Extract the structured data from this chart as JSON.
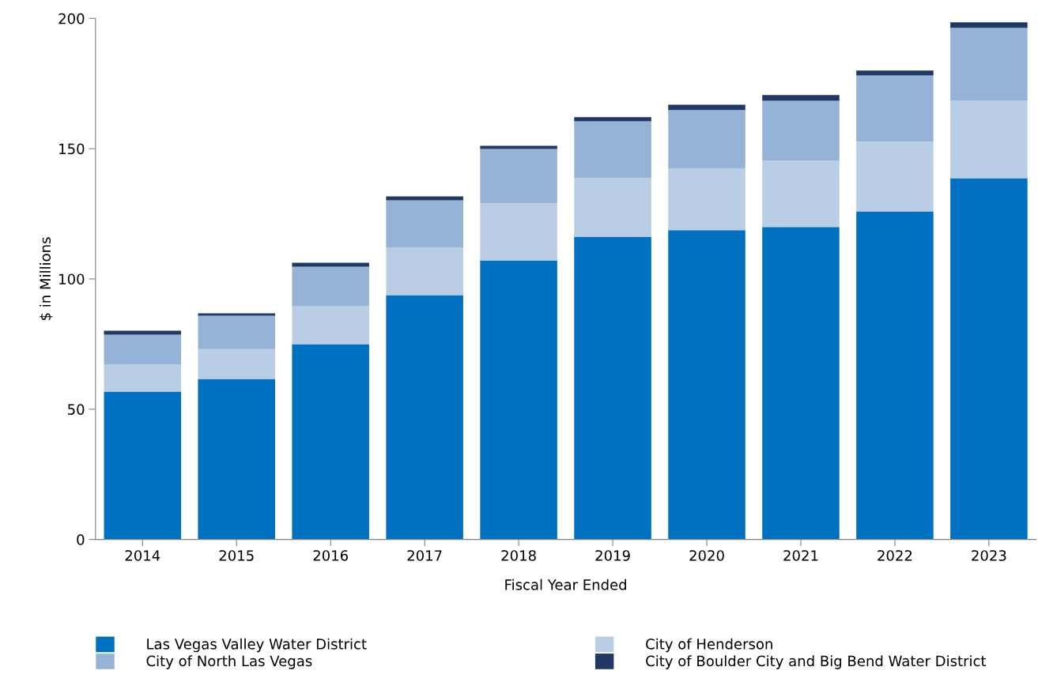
{
  "chart_data": {
    "type": "bar",
    "stacked": true,
    "xlabel": "Fiscal Year Ended",
    "ylabel": "$ in Millions",
    "categories": [
      "2014",
      "2015",
      "2016",
      "2017",
      "2018",
      "2019",
      "2020",
      "2021",
      "2022",
      "2023"
    ],
    "series": [
      {
        "name": "Las Vegas Valley Water District",
        "color": "#0070c0",
        "values": [
          56.8,
          61.6,
          75.0,
          93.8,
          107.1,
          116.2,
          118.7,
          119.9,
          125.9,
          138.7
        ]
      },
      {
        "name": "City of Henderson",
        "color": "#b9cde5",
        "values": [
          10.3,
          11.5,
          14.5,
          18.2,
          21.9,
          22.5,
          23.6,
          25.5,
          26.8,
          29.7
        ]
      },
      {
        "name": "City of North Las Vegas",
        "color": "#95b3d7",
        "values": [
          11.5,
          12.8,
          15.2,
          18.2,
          20.9,
          21.8,
          22.5,
          23.0,
          25.4,
          28.0
        ]
      },
      {
        "name": "City of Boulder City and Big Bend Water District",
        "color": "#1f3864",
        "values": [
          1.5,
          0.9,
          1.5,
          1.5,
          1.2,
          1.6,
          2.1,
          2.2,
          1.9,
          2.1
        ]
      }
    ],
    "ylim": [
      0,
      200
    ],
    "yticks": [
      0,
      50,
      100,
      150,
      200
    ],
    "grid": false,
    "legend": "bottom"
  }
}
